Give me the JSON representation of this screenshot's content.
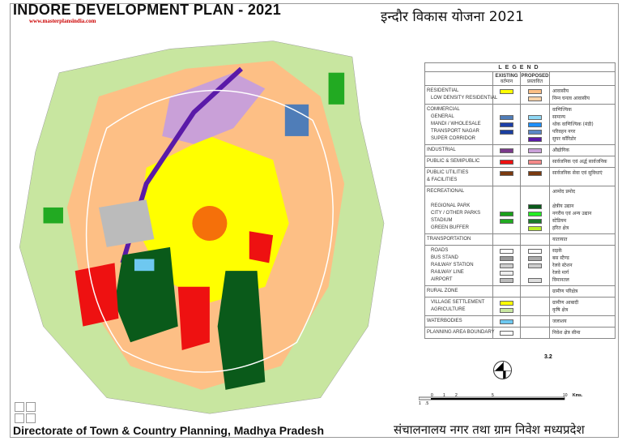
{
  "header": {
    "title": "INDORE DEVELOPMENT PLAN - 2021",
    "website": "www.masterplansindia.com",
    "title_hindi": "इन्दौर विकास योजना 2021"
  },
  "footer": {
    "left": "Directorate of Town & Country Planning, Madhya Pradesh",
    "right": "संचालनालय नगर तथा ग्राम निवेश मध्यप्रदेश"
  },
  "sheet_number": "3.2",
  "legend": {
    "title": "LEGEND",
    "existing": "EXISTING",
    "existing_hi": "वर्तमान",
    "proposed": "PROPOSED",
    "proposed_hi": "प्रस्तावित",
    "rows": [
      {
        "items": [
          {
            "label": "RESIDENTIAL",
            "hi": "आवासीय",
            "e": "#ffff00",
            "p": "#fdbf85"
          },
          {
            "label": "LOW DENSITY RESIDENTIAL",
            "sub": true,
            "hi": "निम्न घनत्व आवासीय",
            "e": null,
            "p": "#fdd3a8"
          }
        ]
      },
      {
        "items": [
          {
            "label": "COMMERCIAL",
            "hi": "वाणिज्यिक",
            "e": null,
            "p": null
          },
          {
            "label": "GENERAL",
            "sub": true,
            "hi": "सामान्य",
            "e": "#4f7db8",
            "p": "#8fd8f5"
          },
          {
            "label": "MANDI / WHOLESALE",
            "sub": true,
            "hi": "थोक वाणिज्यिक (मंडी)",
            "e": "#1c3fa8",
            "p": "#1e90ff"
          },
          {
            "label": "TRANSPORT NAGAR",
            "sub": true,
            "hi": "परिवहन नगर",
            "e": "#1a3fa0",
            "p": "#5a87c6"
          },
          {
            "label": "SUPER CORRIDOR",
            "sub": true,
            "hi": "सुपर कॉरिडोर",
            "e": null,
            "p": "#5a1aa8"
          }
        ]
      },
      {
        "items": [
          {
            "label": "INDUSTRIAL",
            "hi": "औद्योगिक",
            "e": "#7a3a8a",
            "p": "#c9a0d8"
          }
        ]
      },
      {
        "items": [
          {
            "label": "PUBLIC & SEMIPUBLIC",
            "hi": "सार्वजनिक एवं अर्द्ध सार्वजनिक",
            "e": "#ee1111",
            "p": "#f58a8a"
          }
        ]
      },
      {
        "items": [
          {
            "label": "PUBLIC UTILITIES",
            "hi": "सार्वजनिक सेवा एवं सुविधाएं",
            "e": "#7a3a10",
            "p": "#7a3a10"
          },
          {
            "label": "& FACILITIES",
            "hi": "",
            "e": null,
            "p": null
          }
        ]
      },
      {
        "items": [
          {
            "label": "RECREATIONAL",
            "hi": "आमोद प्रमोद",
            "e": null,
            "p": null
          },
          {
            "label": "",
            "hi": "",
            "e": null,
            "p": null
          },
          {
            "label": "REGIONAL PARK",
            "sub": true,
            "hi": "क्षेत्रीय उद्यान",
            "e": null,
            "p": "#0a5a1a"
          },
          {
            "label": "CITY / OTHER PARKS",
            "sub": true,
            "hi": "नगरीय एवं अन्य उद्यान",
            "e": "#1aa01a",
            "p": "#22ee22"
          },
          {
            "label": "STADIUM",
            "sub": true,
            "hi": "स्टेडियम",
            "e": "#22aa22",
            "p": "#1a7a2a"
          },
          {
            "label": "GREEN BUFFER",
            "sub": true,
            "hi": "हरित क्षेत्र",
            "e": null,
            "p": "#b8f028"
          }
        ]
      },
      {
        "items": [
          {
            "label": "TRANSPORTATION",
            "hi": "यातायात",
            "e": null,
            "p": null
          }
        ]
      },
      {
        "items": [
          {
            "label": "ROADS",
            "sub": true,
            "hi": "सड़कें",
            "e": "#ffffff",
            "p": "#ffffff"
          },
          {
            "label": "BUS STAND",
            "sub": true,
            "hi": "बस स्टैण्ड",
            "e": "#999999",
            "p": "#aaaaaa"
          },
          {
            "label": "RAILWAY STATION",
            "sub": true,
            "hi": "रेलवे स्टेशन",
            "e": "#cccccc",
            "p": "#cccccc"
          },
          {
            "label": "RAILWAY LINE",
            "sub": true,
            "hi": "रेलवे मार्ग",
            "e": "#eeeeee",
            "p": null
          },
          {
            "label": "AIRPORT",
            "sub": true,
            "hi": "विमानतल",
            "e": "#bbbbbb",
            "p": "#dddddd"
          }
        ]
      },
      {
        "items": [
          {
            "label": "RURAL ZONE",
            "hi": "ग्रामीण परिक्षेत्र",
            "e": null,
            "p": null
          }
        ]
      },
      {
        "items": [
          {
            "label": "VILLAGE SETTLEMENT",
            "sub": true,
            "hi": "ग्रामीण आबादी",
            "e": "#ffff00",
            "p": null
          },
          {
            "label": "AGRICULTURE",
            "sub": true,
            "hi": "कृषि क्षेत्र",
            "e": "#c8e6a0",
            "p": null
          }
        ]
      },
      {
        "items": [
          {
            "label": "WATERBODIES",
            "hi": "जलाशय",
            "e": "#6ec8f0",
            "p": null
          }
        ]
      },
      {
        "items": [
          {
            "label": "PLANNING AREA BOUNDARY",
            "hi": "निवेश क्षेत्र सीमा",
            "e": "#ffffff",
            "p": null
          }
        ]
      }
    ]
  },
  "scale": {
    "ticks": [
      "1",
      ".5",
      "0",
      "1",
      "2",
      "5",
      "10"
    ],
    "unit": "Kms."
  },
  "map_colors": {
    "residential": "#fdbf85",
    "existing_residential": "#ffff00",
    "industrial": "#c9a0d8",
    "public": "#ee1111",
    "regional_park": "#0a5a1a",
    "parks": "#22aa22",
    "agriculture": "#c8e6a0",
    "water": "#6ec8f0",
    "super_corridor": "#5a1aa8",
    "airport": "#bbbbbb"
  }
}
